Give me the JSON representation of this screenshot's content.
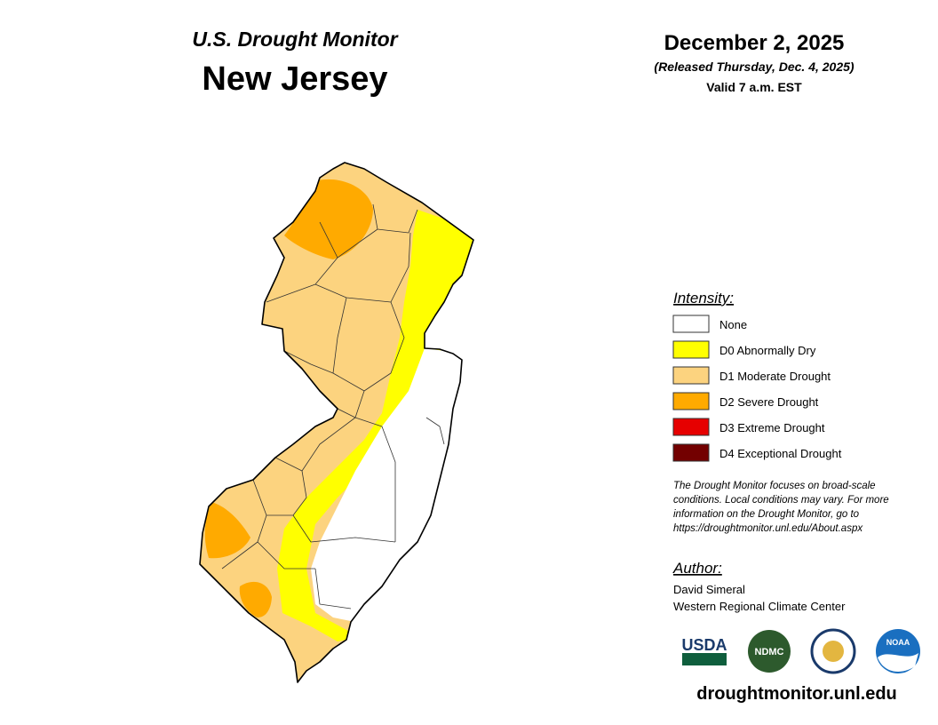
{
  "header": {
    "product": "U.S. Drought Monitor",
    "region": "New Jersey",
    "date": "December 2, 2025",
    "released": "(Released Thursday, Dec. 4, 2025)",
    "valid": "Valid 7 a.m. EST"
  },
  "legend": {
    "title": "Intensity:",
    "items": [
      {
        "label": "None",
        "color": "#ffffff"
      },
      {
        "label": "D0 Abnormally Dry",
        "color": "#ffff00"
      },
      {
        "label": "D1 Moderate Drought",
        "color": "#fcd37f"
      },
      {
        "label": "D2 Severe Drought",
        "color": "#ffaa00"
      },
      {
        "label": "D3 Extreme Drought",
        "color": "#e60000"
      },
      {
        "label": "D4 Exceptional Drought",
        "color": "#730000"
      }
    ]
  },
  "note": [
    "The Drought Monitor focuses on broad-scale",
    "conditions. Local conditions may vary. For more",
    "information on the Drought Monitor, go to",
    "https://droughtmonitor.unl.edu/About.aspx"
  ],
  "author": {
    "title": "Author:",
    "name": "David Simeral",
    "org": "Western Regional Climate Center"
  },
  "logos": [
    "USDA",
    "NDMC",
    "NOAA"
  ],
  "footer": "droughtmonitor.unl.edu"
}
